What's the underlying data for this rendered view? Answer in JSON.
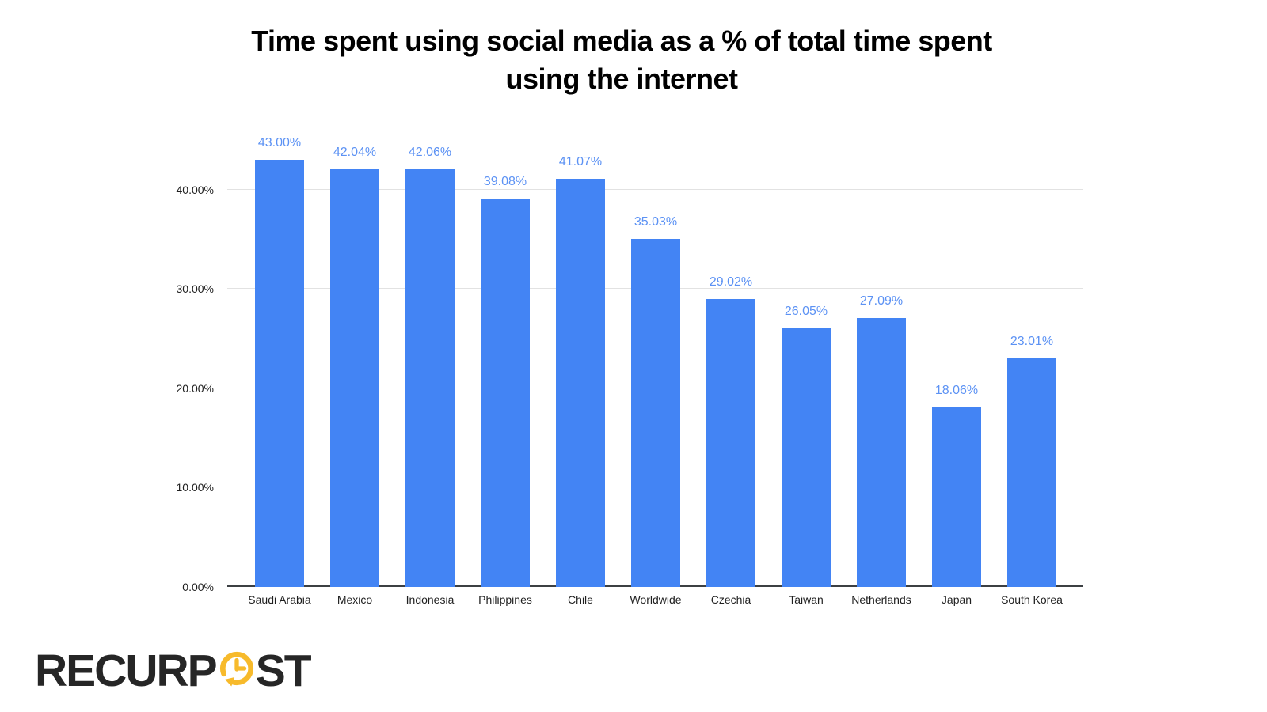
{
  "title_lines": [
    "Time spent using social media as a % of total time spent",
    "using the internet"
  ],
  "logo": {
    "text_left": "RECURP",
    "text_right": "ST",
    "icon": "clock-recur-icon"
  },
  "colors": {
    "bar": "#4384f4",
    "data_label": "#5c92f4",
    "gridline": "#e2e2e2",
    "axis_line": "#3c4043",
    "axis_text": "#1f1f1f",
    "title_text": "#000000",
    "logo_text": "#262626",
    "logo_icon_yellow": "#f7ba2b",
    "background": "#ffffff"
  },
  "chart_data": {
    "type": "bar",
    "title": "Time spent using social media as a % of total time spent using the internet",
    "categories": [
      "Saudi Arabia",
      "Mexico",
      "Indonesia",
      "Philippines",
      "Chile",
      "Worldwide",
      "Czechia",
      "Taiwan",
      "Netherlands",
      "Japan",
      "South Korea"
    ],
    "values": [
      43.0,
      42.04,
      42.06,
      39.08,
      41.07,
      35.03,
      29.02,
      26.05,
      27.09,
      18.06,
      23.01
    ],
    "data_labels": [
      "43.00%",
      "42.04%",
      "42.06%",
      "39.08%",
      "41.07%",
      "35.03%",
      "29.02%",
      "26.05%",
      "27.09%",
      "18.06%",
      "23.01%"
    ],
    "y_ticks": [
      {
        "value": 0,
        "label": "0.00%"
      },
      {
        "value": 10,
        "label": "10.00%"
      },
      {
        "value": 20,
        "label": "20.00%"
      },
      {
        "value": 30,
        "label": "30.00%"
      },
      {
        "value": 40,
        "label": "40.00%"
      }
    ],
    "ylim": [
      0,
      45
    ],
    "xlabel": "",
    "ylabel": "",
    "legend": "none",
    "grid": "horizontal",
    "bar_color": "#4384f4",
    "label_color": "#5c92f4"
  }
}
